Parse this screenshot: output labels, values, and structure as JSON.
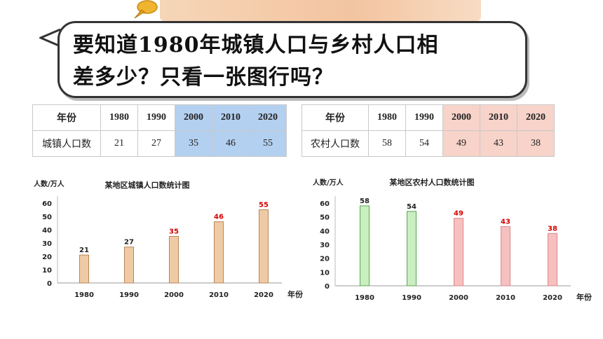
{
  "question": {
    "line1": "要知道1980年城镇人口与乡村人口相",
    "line2": "差多少？只看一张图行吗？"
  },
  "colors": {
    "urban_bar": "#eecba5",
    "urban_bar_stroke": "#b98555",
    "rural_bar_old": "#c9eec0",
    "rural_bar_old_stroke": "#5ea453",
    "rural_bar_new": "#f7c0c0",
    "rural_bar_new_stroke": "#d78a8a",
    "highlight_label": "#d40000",
    "table_hl_urban": "#b4d0f0",
    "table_hl_rural": "#f7d3c9"
  },
  "urban_table": {
    "header_label": "年份",
    "row_label": "城镇人口数",
    "years": [
      "1980",
      "1990",
      "2000",
      "2010",
      "2020"
    ],
    "values": [
      "21",
      "27",
      "35",
      "46",
      "55"
    ]
  },
  "rural_table": {
    "header_label": "年份",
    "row_label": "农村人口数",
    "years": [
      "1980",
      "1990",
      "2000",
      "2010",
      "2020"
    ],
    "values": [
      "58",
      "54",
      "49",
      "43",
      "38"
    ]
  },
  "chart_data": [
    {
      "type": "bar",
      "title": "某地区城镇人口数统计图",
      "ylabel": "人数/万人",
      "xlabel": "年份",
      "categories": [
        "1980",
        "1990",
        "2000",
        "2010",
        "2020"
      ],
      "values": [
        21,
        27,
        35,
        46,
        55
      ],
      "ylim": [
        0,
        60
      ],
      "yticks": [
        "0",
        "10",
        "20",
        "30",
        "40",
        "50",
        "60"
      ],
      "grid": false,
      "highlighted_from_index": 2
    },
    {
      "type": "bar",
      "title": "某地区农村人口数统计图",
      "ylabel": "人数/万人",
      "xlabel": "年份",
      "categories": [
        "1980",
        "1990",
        "2000",
        "2010",
        "2020"
      ],
      "values": [
        58,
        54,
        49,
        43,
        38
      ],
      "ylim": [
        0,
        60
      ],
      "yticks": [
        "0",
        "10",
        "20",
        "30",
        "40",
        "50",
        "60"
      ],
      "grid": false,
      "highlighted_from_index": 2
    }
  ]
}
